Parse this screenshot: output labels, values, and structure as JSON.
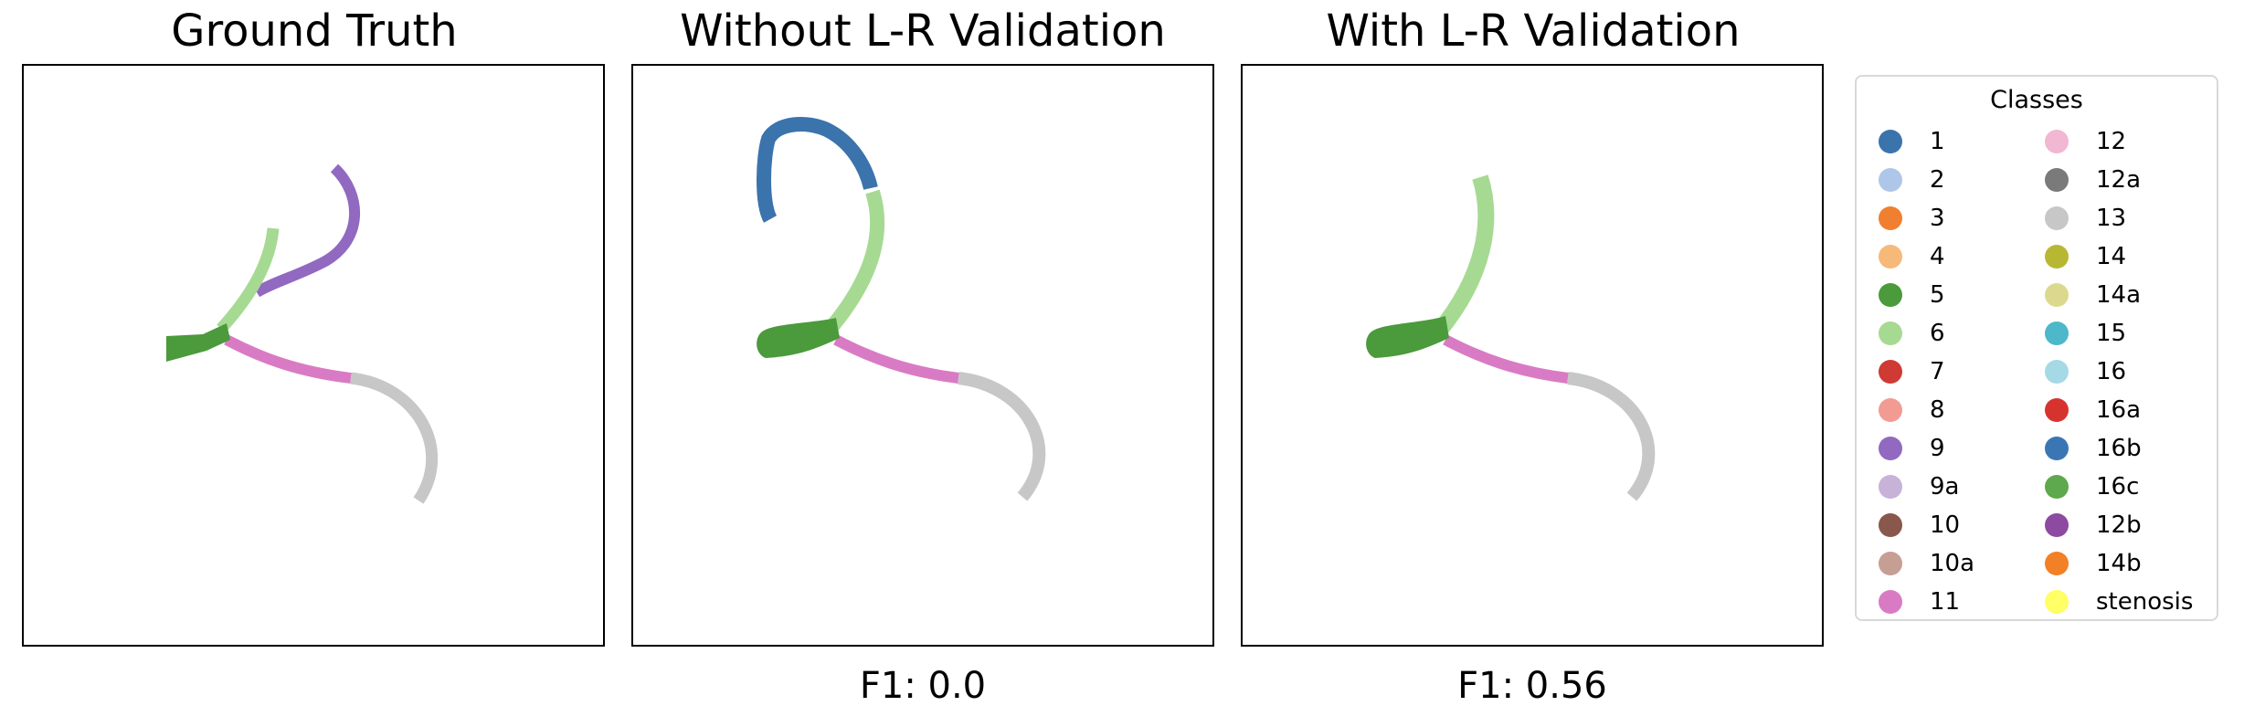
{
  "panels": [
    {
      "title": "Ground Truth",
      "f1": ""
    },
    {
      "title": "Without L-R Validation",
      "f1": "F1: 0.0"
    },
    {
      "title": "With L-R Validation",
      "f1": "F1: 0.56"
    }
  ],
  "legend": {
    "title": "Classes",
    "col1": [
      {
        "label": "1",
        "color": "#3b73ad"
      },
      {
        "label": "2",
        "color": "#aec7e8"
      },
      {
        "label": "3",
        "color": "#f07f2f"
      },
      {
        "label": "4",
        "color": "#f7b97a"
      },
      {
        "label": "5",
        "color": "#4b9a3c"
      },
      {
        "label": "6",
        "color": "#a6da92"
      },
      {
        "label": "7",
        "color": "#cf3a34"
      },
      {
        "label": "8",
        "color": "#f29b93"
      },
      {
        "label": "9",
        "color": "#9169c1"
      },
      {
        "label": "9a",
        "color": "#c7b2d8"
      },
      {
        "label": "10",
        "color": "#8a574d"
      },
      {
        "label": "10a",
        "color": "#c79e94"
      },
      {
        "label": "11",
        "color": "#d97bc4"
      }
    ],
    "col2": [
      {
        "label": "12",
        "color": "#f2b7d2"
      },
      {
        "label": "12a",
        "color": "#7a7a7a"
      },
      {
        "label": "13",
        "color": "#c7c7c7"
      },
      {
        "label": "14",
        "color": "#b8b734"
      },
      {
        "label": "14a",
        "color": "#dcd98f"
      },
      {
        "label": "15",
        "color": "#4cb8c9"
      },
      {
        "label": "16",
        "color": "#a6d9e6"
      },
      {
        "label": "16a",
        "color": "#d7332e"
      },
      {
        "label": "16b",
        "color": "#3a76b4"
      },
      {
        "label": "16c",
        "color": "#5ea84e"
      },
      {
        "label": "12b",
        "color": "#8d4aa0"
      },
      {
        "label": "14b",
        "color": "#f28026"
      },
      {
        "label": "stenosis",
        "color": "#ffff66"
      }
    ]
  }
}
